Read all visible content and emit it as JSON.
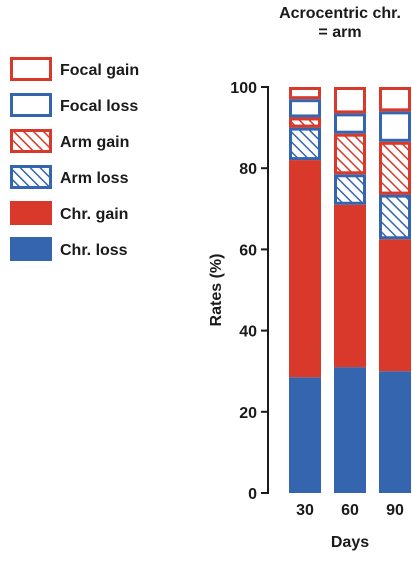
{
  "chart_data": {
    "type": "bar",
    "stacked": true,
    "title_lines": [
      "Acrocentric chr.",
      "= arm"
    ],
    "xlabel": "Days",
    "ylabel": "Rates (%)",
    "ylim": [
      0,
      100
    ],
    "yticks": [
      0,
      20,
      40,
      60,
      80,
      100
    ],
    "categories": [
      "30",
      "60",
      "90"
    ],
    "legend_position": "left",
    "series": [
      {
        "name": "Chr. loss",
        "style": "solid",
        "color": "#3465ae",
        "values": [
          28.5,
          31,
          30
        ]
      },
      {
        "name": "Chr. gain",
        "style": "solid",
        "color": "#d8392a",
        "values": [
          53.5,
          40,
          32.5
        ]
      },
      {
        "name": "Arm loss",
        "style": "hatch",
        "color": "#3465ae",
        "values": [
          8,
          7.5,
          11
        ]
      },
      {
        "name": "Arm gain",
        "style": "hatch",
        "color": "#d8392a",
        "values": [
          2.5,
          10,
          13
        ]
      },
      {
        "name": "Focal loss",
        "style": "outline",
        "color": "#3465ae",
        "values": [
          4.5,
          5,
          7.5
        ]
      },
      {
        "name": "Focal gain",
        "style": "outline",
        "color": "#d8392a",
        "values": [
          3,
          6.5,
          6
        ]
      }
    ],
    "legend_order": [
      "Focal gain",
      "Focal loss",
      "Arm gain",
      "Arm loss",
      "Chr. gain",
      "Chr. loss"
    ],
    "grid": false
  }
}
